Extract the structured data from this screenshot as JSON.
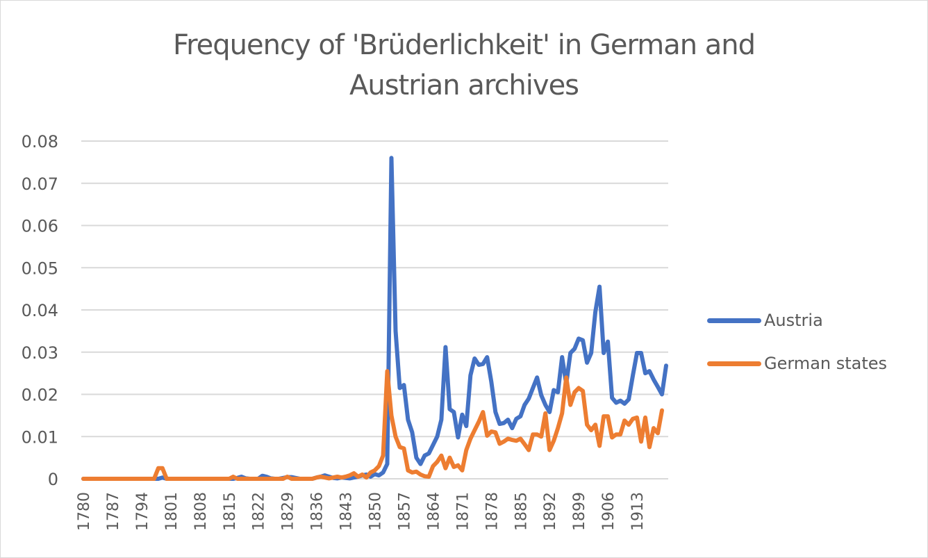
{
  "chart_data": {
    "type": "line",
    "title": "Frequency of 'Brüderlichkeit' in German and Austrian archives",
    "title_lines": [
      "Frequency of 'Brüderlichkeit' in German and",
      "Austrian archives"
    ],
    "xlabel": "",
    "ylabel": "",
    "ylim": [
      0,
      0.08
    ],
    "yticks": [
      "0",
      "0.01",
      "0.02",
      "0.03",
      "0.04",
      "0.05",
      "0.06",
      "0.07",
      "0.08"
    ],
    "ytick_values": [
      0,
      0.01,
      0.02,
      0.03,
      0.04,
      0.05,
      0.06,
      0.07,
      0.08
    ],
    "xticks": [
      "1780",
      "1787",
      "1794",
      "1801",
      "1808",
      "1815",
      "1822",
      "1829",
      "1836",
      "1843",
      "1850",
      "1857",
      "1864",
      "1871",
      "1878",
      "1885",
      "1892",
      "1899",
      "1906",
      "1913"
    ],
    "x_start": 1780,
    "x_end": 1914,
    "grid": true,
    "legend_position": "right",
    "series": [
      {
        "name": "Austria",
        "color": "#4472c4",
        "values": [
          0,
          0,
          0,
          0,
          0,
          0,
          0,
          0,
          0,
          0,
          0,
          0,
          0,
          0,
          0,
          0,
          0,
          0,
          0,
          0.0003,
          0,
          0,
          0,
          0,
          0,
          0,
          0,
          0,
          0,
          0,
          0,
          0,
          0,
          0,
          0,
          0,
          0,
          0.0002,
          0.0005,
          0.0001,
          0,
          0,
          0,
          0.0007,
          0.0005,
          0.0001,
          0,
          0,
          0.0002,
          0.0004,
          0.0004,
          0.0002,
          0,
          0,
          0,
          0,
          0.0003,
          0.0005,
          0.0008,
          0.0005,
          0.0002,
          0.0001,
          0.0003,
          0.0002,
          0.0001,
          0.0003,
          0.0005,
          0.0008,
          0.001,
          0.0005,
          0.0011,
          0.0008,
          0.0015,
          0.0035,
          0.076,
          0.035,
          0.0215,
          0.0222,
          0.014,
          0.011,
          0.005,
          0.0035,
          0.0055,
          0.006,
          0.008,
          0.01,
          0.014,
          0.0312,
          0.0165,
          0.0158,
          0.0098,
          0.0152,
          0.0125,
          0.0245,
          0.0285,
          0.027,
          0.0272,
          0.0288,
          0.023,
          0.0158,
          0.013,
          0.0132,
          0.014,
          0.012,
          0.0142,
          0.0148,
          0.0175,
          0.019,
          0.0215,
          0.024,
          0.0198,
          0.0175,
          0.0158,
          0.021,
          0.0205,
          0.0288,
          0.0225,
          0.0298,
          0.0308,
          0.0332,
          0.0328,
          0.0275,
          0.0298,
          0.0395,
          0.0455,
          0.0298,
          0.0325,
          0.0192,
          0.018,
          0.0185,
          0.0178,
          0.0188,
          0.0245,
          0.0298,
          0.0298,
          0.025,
          0.0255,
          0.0235,
          0.0218,
          0.02,
          0.0268
        ]
      },
      {
        "name": "German states",
        "color": "#ed7d31",
        "values": [
          0,
          0,
          0,
          0,
          0,
          0,
          0,
          0,
          0,
          0,
          0,
          0,
          0,
          0,
          0,
          0,
          0,
          0,
          0.0025,
          0.0025,
          0,
          0,
          0,
          0,
          0,
          0,
          0,
          0,
          0,
          0,
          0,
          0,
          0,
          0,
          0,
          0,
          0.0005,
          0,
          0,
          0,
          0,
          0,
          0,
          0,
          0,
          0,
          0,
          0,
          0,
          0.0005,
          0,
          0,
          0,
          0,
          0,
          0,
          0.0003,
          0.0005,
          0.0003,
          0.0001,
          0.0003,
          0.0005,
          0.0003,
          0.0005,
          0.0008,
          0.0013,
          0.0005,
          0.001,
          0.0003,
          0.0015,
          0.002,
          0.003,
          0.0055,
          0.0255,
          0.015,
          0.01,
          0.0075,
          0.0072,
          0.002,
          0.0015,
          0.0017,
          0.001,
          0.0006,
          0.0005,
          0.003,
          0.004,
          0.0055,
          0.0025,
          0.005,
          0.0028,
          0.0032,
          0.002,
          0.0068,
          0.0095,
          0.0115,
          0.0135,
          0.0158,
          0.0102,
          0.0112,
          0.011,
          0.0083,
          0.0088,
          0.0095,
          0.0092,
          0.009,
          0.0095,
          0.0082,
          0.0068,
          0.0105,
          0.0105,
          0.01,
          0.0155,
          0.0068,
          0.009,
          0.012,
          0.0155,
          0.024,
          0.0175,
          0.0205,
          0.0215,
          0.0208,
          0.0128,
          0.0115,
          0.0128,
          0.0078,
          0.0148,
          0.0148,
          0.0098,
          0.0105,
          0.0105,
          0.0138,
          0.0128,
          0.0142,
          0.0145,
          0.0088,
          0.0145,
          0.0075,
          0.012,
          0.0108,
          0.0162
        ]
      }
    ]
  }
}
